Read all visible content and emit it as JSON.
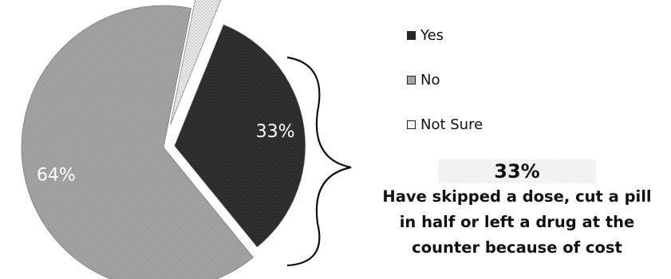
{
  "chart_data": {
    "type": "pie",
    "title": "",
    "slices": [
      {
        "label": "Yes",
        "value": 33,
        "value_label": "33%",
        "color": "#262626"
      },
      {
        "label": "No",
        "value": 64,
        "value_label": "64%",
        "color": "#a4a4a4"
      },
      {
        "label": "Not Sure",
        "value": 3,
        "value_label": "",
        "color": "#e2e2e2"
      }
    ],
    "legend": {
      "position": "right",
      "entries": [
        "Yes",
        "No",
        "Not Sure"
      ]
    },
    "exploded": true
  },
  "callout": {
    "percent": "33%",
    "lines": [
      "Have skipped a dose, cut a pill",
      "in half or left a drug at the",
      "counter because of cost"
    ]
  }
}
